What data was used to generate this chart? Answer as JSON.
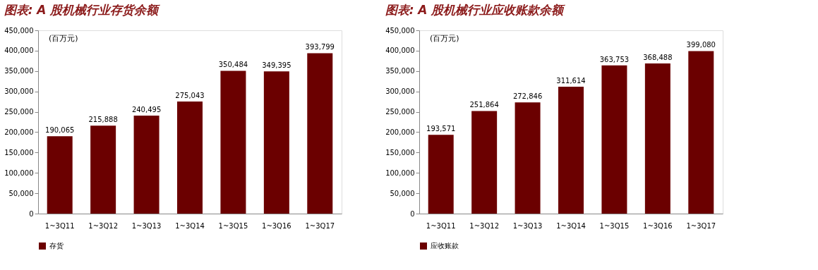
{
  "chart_data": [
    {
      "type": "bar",
      "title": "图表: A 股机械行业存货余额",
      "categories": [
        "1~3Q11",
        "1~3Q12",
        "1~3Q13",
        "1~3Q14",
        "1~3Q15",
        "1~3Q16",
        "1~3Q17"
      ],
      "series": [
        {
          "name": "存货",
          "color": "#6b0000",
          "values": [
            190065,
            215888,
            240495,
            275043,
            350484,
            349395,
            393799
          ],
          "value_labels": [
            "190,065",
            "215,888",
            "240,495",
            "275,043",
            "350,484",
            "349,395",
            "393,799"
          ]
        }
      ],
      "ylim": [
        0,
        450000
      ],
      "yticks": [
        {
          "value": 0,
          "label": "0"
        },
        {
          "value": 50000,
          "label": "50,000"
        },
        {
          "value": 100000,
          "label": "100,000"
        },
        {
          "value": 150000,
          "label": "150,000"
        },
        {
          "value": 200000,
          "label": "200,000"
        },
        {
          "value": 250000,
          "label": "250,000"
        },
        {
          "value": 300000,
          "label": "300,000"
        },
        {
          "value": 350000,
          "label": "350,000"
        },
        {
          "value": 400000,
          "label": "400,000"
        },
        {
          "value": 450000,
          "label": "450,000"
        }
      ],
      "annotations": [
        "(百万元)"
      ],
      "grid": false,
      "legend": "bottom"
    },
    {
      "type": "bar",
      "title": "图表: A 股机械行业应收账款余额",
      "categories": [
        "1~3Q11",
        "1~3Q12",
        "1~3Q13",
        "1~3Q14",
        "1~3Q15",
        "1~3Q16",
        "1~3Q17"
      ],
      "series": [
        {
          "name": "应收账款",
          "color": "#6b0000",
          "values": [
            193571,
            251864,
            272846,
            311614,
            363753,
            368488,
            399080
          ],
          "value_labels": [
            "193,571",
            "251,864",
            "272,846",
            "311,614",
            "363,753",
            "368,488",
            "399,080"
          ]
        }
      ],
      "ylim": [
        0,
        450000
      ],
      "yticks": [
        {
          "value": 0,
          "label": "0"
        },
        {
          "value": 50000,
          "label": "50,000"
        },
        {
          "value": 100000,
          "label": "100,000"
        },
        {
          "value": 150000,
          "label": "150,000"
        },
        {
          "value": 200000,
          "label": "200,000"
        },
        {
          "value": 250000,
          "label": "250,000"
        },
        {
          "value": 300000,
          "label": "300,000"
        },
        {
          "value": 350000,
          "label": "350,000"
        },
        {
          "value": 400000,
          "label": "400,000"
        },
        {
          "value": 450000,
          "label": "450,000"
        }
      ],
      "annotations": [
        "(百万元)"
      ],
      "grid": false,
      "legend": "bottom"
    }
  ]
}
